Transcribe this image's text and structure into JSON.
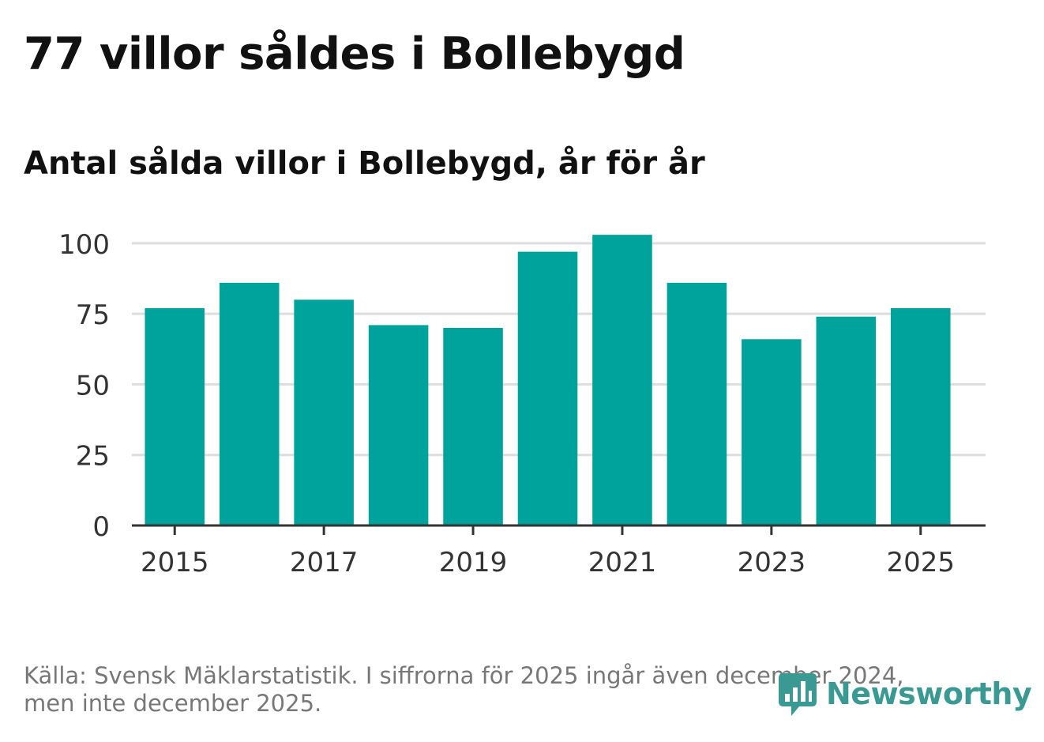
{
  "header": {
    "title": "77 villor såldes i Bollebygd",
    "subtitle": "Antal sålda villor i Bollebygd, år för år"
  },
  "footer": {
    "source": "Källa: Svensk Mäklarstatistik. I siffrorna för 2025 ingår även december 2024, men inte december 2025."
  },
  "logo": {
    "text": "Newsworthy",
    "icon": "bar-chart-speech-bubble-icon"
  },
  "colors": {
    "bar": "#00a39b",
    "grid": "#dddddd",
    "axis": "#333333",
    "logo": "#3a9a93"
  },
  "chart_data": {
    "type": "bar",
    "title": "Antal sålda villor i Bollebygd, år för år",
    "xlabel": "",
    "ylabel": "",
    "categories": [
      "2015",
      "2016",
      "2017",
      "2018",
      "2019",
      "2020",
      "2021",
      "2022",
      "2023",
      "2024",
      "2025"
    ],
    "values": [
      77,
      86,
      80,
      71,
      70,
      97,
      103,
      86,
      66,
      74,
      77
    ],
    "ylim": [
      0,
      105
    ],
    "yticks": [
      0,
      25,
      50,
      75,
      100
    ],
    "xticks": [
      "2015",
      "2017",
      "2019",
      "2021",
      "2023",
      "2025"
    ],
    "grid": true,
    "legend": "none"
  }
}
